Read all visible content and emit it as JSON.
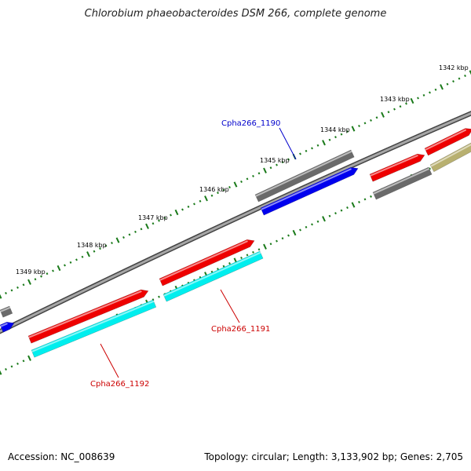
{
  "title": "Chlorobium phaeobacteroides DSM 266, complete genome",
  "footer": {
    "accession": "Accession: NC_008639",
    "summary": "Topology: circular; Length: 3,133,902 bp; Genes: 2,705"
  },
  "scale": {
    "unit": "kbp",
    "ticks": [
      "1342 kbp",
      "1343 kbp",
      "1344 kbp",
      "1345 kbp",
      "1346 kbp",
      "1347 kbp",
      "1348 kbp",
      "1349 kbp"
    ]
  },
  "gene_labels": [
    {
      "text": "Cpha266_1190",
      "color": "#0000cc"
    },
    {
      "text": "Cpha266_1191",
      "color": "#cc0000"
    },
    {
      "text": "Cpha266_1192",
      "color": "#cc0000"
    }
  ],
  "colors": {
    "backbone": "#8a8a8a",
    "tick": "#1a7a1a",
    "red": "#ee0000",
    "blue": "#0000ee",
    "cyan": "#00eeee",
    "gray": "#6a6a6a",
    "olive": "#b8b070"
  }
}
